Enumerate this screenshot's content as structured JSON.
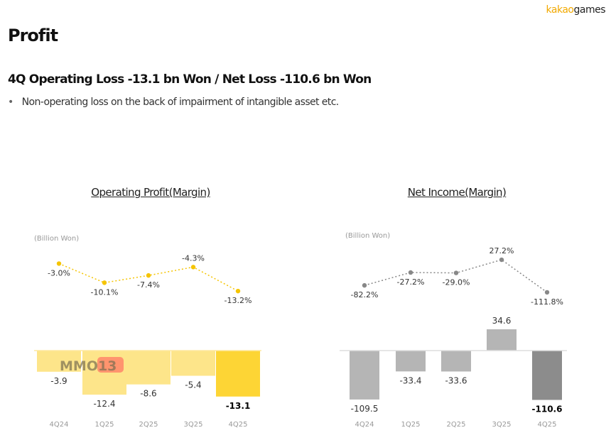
{
  "logo": {
    "part1": "kakao",
    "part2": "games"
  },
  "title": "Profit",
  "subtitle": "4Q Operating Loss  -13.1 bn Won / Net Loss -110.6 bn Won",
  "bullet": "Non-operating loss on the back of impairment of intangible asset etc.",
  "watermark": "MMO13",
  "colors": {
    "op_bar": "#fde58a",
    "op_bar_last": "#fdd535",
    "op_line": "#f5c400",
    "net_bar": "#b5b5b5",
    "net_bar_last": "#8c8c8c",
    "net_line": "#888888"
  },
  "chart_data": [
    {
      "type": "bar",
      "title": "Operating Profit(Margin)",
      "unit": "(Billion Won)",
      "categories": [
        "4Q24",
        "1Q25",
        "2Q25",
        "3Q25",
        "4Q25"
      ],
      "values": [
        -3.9,
        -12.4,
        -8.6,
        -5.4,
        -13.1
      ],
      "value_labels": [
        "-3.9",
        "-12.4",
        "-8.6",
        "-5.4",
        "-13.1"
      ],
      "margin": [
        -3.0,
        -10.1,
        -7.4,
        -4.3,
        -13.2
      ],
      "margin_labels": [
        "-3.0%",
        "-10.1%",
        "-7.4%",
        "-4.3%",
        "-13.2%"
      ]
    },
    {
      "type": "bar",
      "title": "Net Income(Margin)",
      "unit": "(Billion Won)",
      "categories": [
        "4Q24",
        "1Q25",
        "2Q25",
        "3Q25",
        "4Q25"
      ],
      "values": [
        -109.5,
        -33.4,
        -33.6,
        34.6,
        -110.6
      ],
      "value_labels": [
        "-109.5",
        "-33.4",
        "-33.6",
        "34.6",
        "-110.6"
      ],
      "margin": [
        -82.2,
        -27.2,
        -29.0,
        27.2,
        -111.8
      ],
      "margin_labels": [
        "-82.2%",
        "-27.2%",
        "-29.0%",
        "27.2%",
        "-111.8%"
      ]
    }
  ]
}
